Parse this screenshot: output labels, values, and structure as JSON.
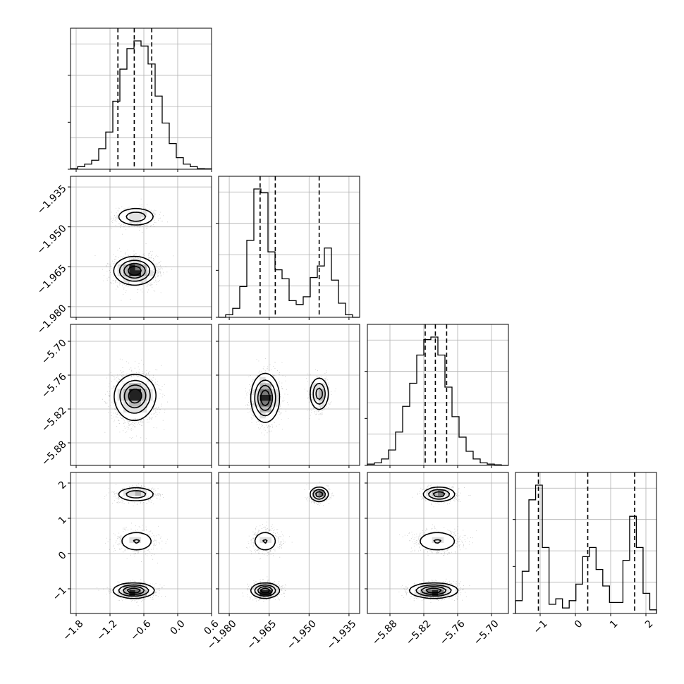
{
  "chart_data": {
    "type": "corner",
    "description_of_panels": "4x4 lower-triangular corner plot: diagonal = 1D histograms with dashed quantile lines, off-diagonal = 2D density with scatter points, shaded histogram and contours",
    "quantile_style": "dashed",
    "grid": true,
    "params": [
      {
        "range": [
          -1.9,
          0.6
        ],
        "ticks": [
          -1.8,
          -1.2,
          -0.6,
          0.0,
          0.6
        ],
        "tick_labels": [
          "−1.8",
          "−1.2",
          "−0.6",
          "0.0",
          "0.6"
        ],
        "quantiles": [
          -1.06,
          -0.77,
          -0.46
        ],
        "hist": [
          0.005,
          0.02,
          0.04,
          0.07,
          0.16,
          0.29,
          0.53,
          0.78,
          0.94,
          1.0,
          0.96,
          0.82,
          0.57,
          0.36,
          0.2,
          0.09,
          0.04,
          0.02,
          0.005,
          0.003
        ]
      },
      {
        "range": [
          -1.984,
          -1.931
        ],
        "ticks": [
          -1.98,
          -1.965,
          -1.95,
          -1.935
        ],
        "tick_labels": [
          "−1.980",
          "−1.965",
          "−1.950",
          "−1.935"
        ],
        "quantiles": [
          -1.9684,
          -1.9627,
          -1.9462
        ],
        "hist": [
          0.0,
          0.02,
          0.07,
          0.24,
          0.6,
          1.0,
          0.97,
          0.51,
          0.37,
          0.3,
          0.13,
          0.1,
          0.16,
          0.31,
          0.4,
          0.54,
          0.29,
          0.11,
          0.02,
          0.0
        ]
      },
      {
        "range": [
          -5.92,
          -5.67
        ],
        "ticks": [
          -5.88,
          -5.82,
          -5.76,
          -5.7
        ],
        "tick_labels": [
          "−5.88",
          "−5.82",
          "−5.76",
          "−5.70"
        ],
        "quantiles": [
          -5.8175,
          -5.7995,
          -5.7795
        ],
        "hist": [
          0.01,
          0.02,
          0.05,
          0.12,
          0.26,
          0.46,
          0.64,
          0.86,
          0.98,
          1.0,
          0.86,
          0.61,
          0.38,
          0.22,
          0.11,
          0.05,
          0.02,
          0.01,
          0.005,
          0.0
        ]
      },
      {
        "range": [
          -1.7,
          2.3
        ],
        "ticks": [
          -1,
          0,
          1,
          2
        ],
        "tick_labels": [
          "−1",
          "0",
          "1",
          "2"
        ],
        "quantiles": [
          -1.05,
          0.35,
          1.68
        ],
        "hist": [
          0.07,
          0.23,
          0.62,
          0.7,
          0.36,
          0.05,
          0.08,
          0.03,
          0.07,
          0.16,
          0.31,
          0.36,
          0.24,
          0.15,
          0.06,
          0.06,
          0.29,
          0.53,
          0.36,
          0.11,
          0.02
        ]
      }
    ],
    "y_ticks": {
      "1": [
        "−1.935",
        "−1.950",
        "−1.965",
        "−1.980"
      ],
      "2": [
        "−5.70",
        "−5.76",
        "−5.82",
        "−5.88"
      ],
      "3": [
        "2",
        "1",
        "0",
        "−1"
      ]
    },
    "modes": [
      {
        "w": 0.5,
        "mean": [
          -0.78,
          -1.9665,
          -5.8025,
          -1.05
        ],
        "sd": [
          0.17,
          0.0025,
          0.02,
          0.1
        ]
      },
      {
        "w": 0.25,
        "mean": [
          -0.73,
          -1.9665,
          -5.796,
          0.35
        ],
        "sd": [
          0.17,
          0.0025,
          0.02,
          0.16
        ]
      },
      {
        "w": 0.25,
        "mean": [
          -0.74,
          -1.9462,
          -5.793,
          1.68
        ],
        "sd": [
          0.17,
          0.0017,
          0.014,
          0.1
        ]
      }
    ]
  }
}
